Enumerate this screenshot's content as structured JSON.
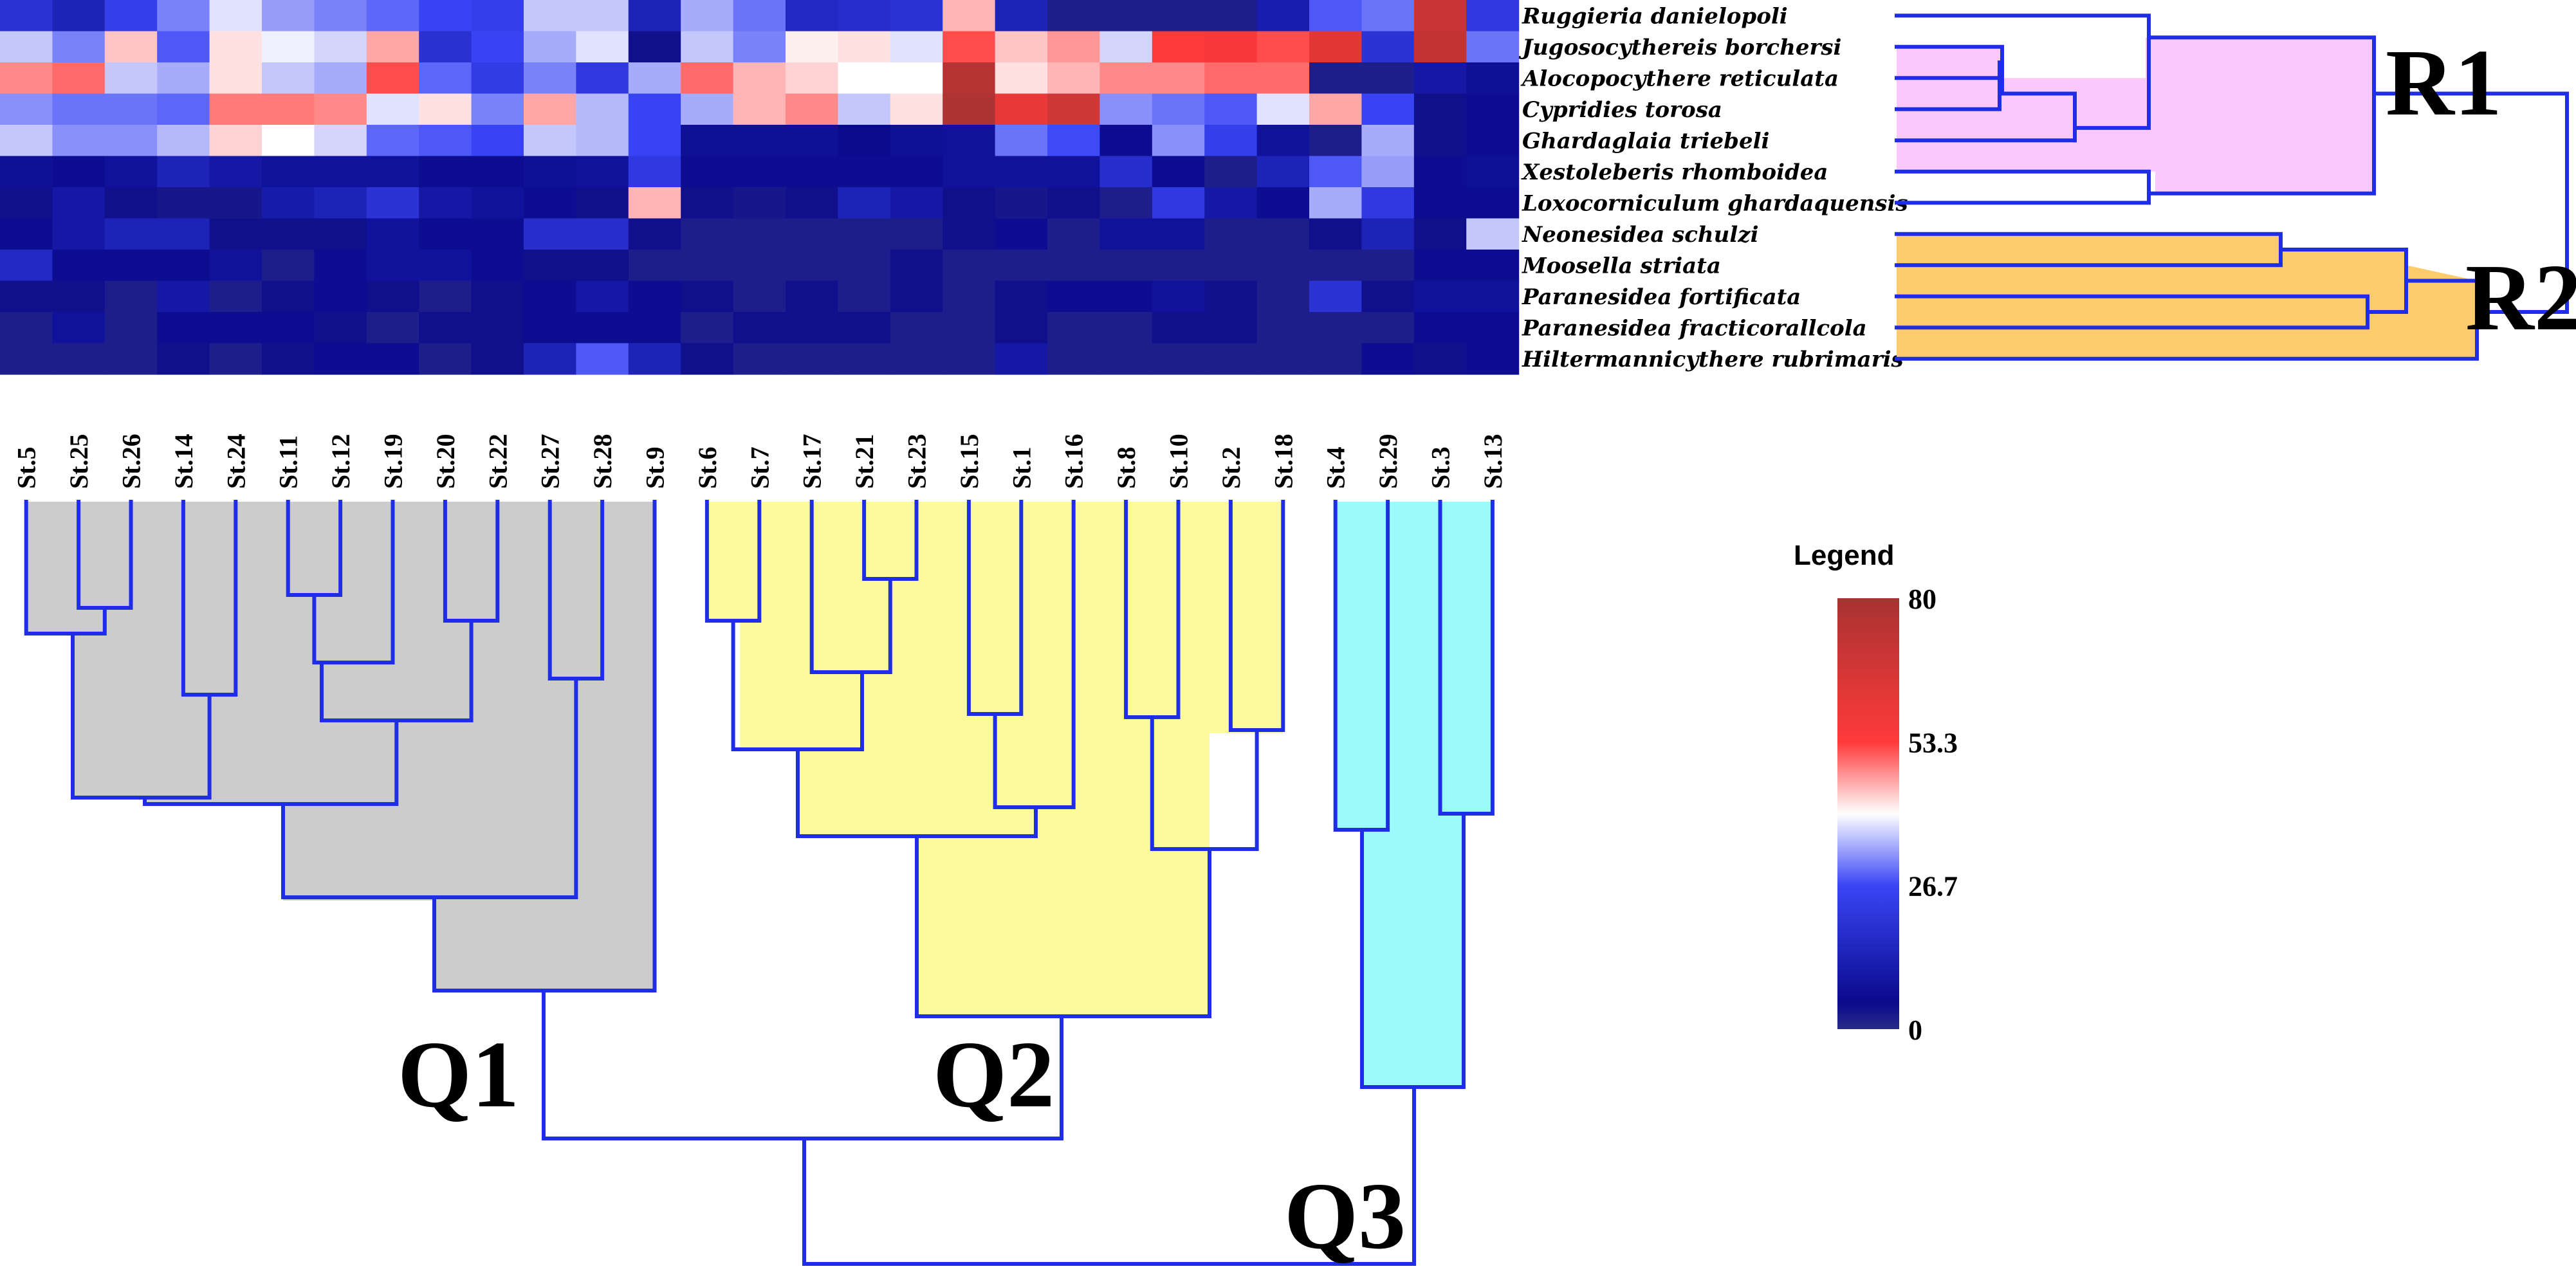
{
  "chart_data": {
    "type": "heatmap",
    "title": "",
    "rows": [
      "Ruggieria danielopoli",
      "Jugosocythereis  borchersi",
      "Alocopocythere reticulata",
      "Cypridies torosa",
      "Ghardaglaia triebeli",
      "Xestoleberis rhomboidea",
      "Loxocorniculum ghardaquensis",
      "Neonesidea schulzi",
      "Moosella striata",
      "Paranesidea fortificata",
      "Paranesidea  fracticorallcola",
      "Hiltermannicythere rubrimaris"
    ],
    "columns": [
      "St.5",
      "St.25",
      "St.26",
      "St.14",
      "St.24",
      "St.11",
      "St.12",
      "St.19",
      "St.20",
      "St.22",
      "St.27",
      "St.28",
      "St.9",
      "St.6",
      "St.7",
      "St.17",
      "St.21",
      "St.23",
      "St.15",
      "St.1",
      "St.16",
      "St.8",
      "St.10",
      "St.2",
      "St.18",
      "St.4",
      "St.29",
      "St.3",
      "St.13"
    ],
    "values": [
      [
        20,
        14,
        24,
        31,
        38,
        33,
        31,
        29,
        26,
        24,
        36,
        36,
        14,
        34,
        30,
        16,
        18,
        20,
        45,
        14,
        2,
        2,
        2,
        2,
        12,
        28,
        30,
        70,
        22
      ],
      [
        36,
        31,
        44,
        28,
        42,
        39,
        37,
        46,
        19,
        26,
        34,
        38,
        4,
        36,
        31,
        41,
        42,
        38,
        52,
        44,
        47,
        37,
        54,
        55,
        52,
        62,
        20,
        72,
        30
      ],
      [
        48,
        50,
        36,
        34,
        42,
        36,
        34,
        52,
        29,
        23,
        31,
        22,
        34,
        50,
        45,
        43,
        40,
        40,
        76,
        42,
        45,
        48,
        48,
        50,
        50,
        2,
        2,
        10,
        7
      ],
      [
        32,
        30,
        30,
        29,
        49,
        49,
        48,
        38,
        42,
        31,
        46,
        35,
        26,
        34,
        45,
        48,
        36,
        42,
        78,
        60,
        68,
        32,
        30,
        28,
        38,
        46,
        26,
        4,
        6
      ],
      [
        36,
        32,
        32,
        35,
        43,
        40,
        37,
        29,
        28,
        26,
        36,
        35,
        26,
        7,
        7,
        7,
        5,
        7,
        8,
        30,
        27,
        6,
        32,
        24,
        8,
        2,
        34,
        4,
        6
      ],
      [
        7,
        6,
        8,
        14,
        10,
        8,
        8,
        8,
        6,
        6,
        7,
        8,
        22,
        6,
        6,
        6,
        6,
        6,
        8,
        8,
        8,
        18,
        6,
        2,
        14,
        28,
        33,
        6,
        7
      ],
      [
        4,
        10,
        4,
        3,
        3,
        11,
        14,
        20,
        10,
        8,
        6,
        4,
        45,
        4,
        3,
        4,
        14,
        10,
        4,
        3,
        4,
        2,
        22,
        10,
        6,
        34,
        22,
        6,
        6
      ],
      [
        6,
        10,
        14,
        14,
        4,
        4,
        4,
        8,
        6,
        6,
        18,
        18,
        4,
        2,
        2,
        2,
        2,
        2,
        4,
        6,
        2,
        8,
        8,
        2,
        2,
        4,
        14,
        4,
        36
      ],
      [
        16,
        6,
        6,
        6,
        8,
        2,
        6,
        8,
        8,
        6,
        4,
        4,
        2,
        2,
        2,
        2,
        2,
        4,
        2,
        2,
        2,
        2,
        2,
        2,
        2,
        2,
        2,
        6,
        6
      ],
      [
        4,
        4,
        2,
        10,
        2,
        4,
        6,
        4,
        2,
        4,
        6,
        10,
        6,
        4,
        2,
        4,
        2,
        4,
        2,
        4,
        6,
        6,
        8,
        4,
        2,
        20,
        4,
        8,
        8
      ],
      [
        2,
        8,
        2,
        6,
        6,
        6,
        4,
        2,
        4,
        4,
        6,
        6,
        6,
        2,
        4,
        4,
        4,
        2,
        2,
        4,
        2,
        2,
        4,
        4,
        2,
        2,
        2,
        6,
        6
      ],
      [
        2,
        2,
        2,
        4,
        2,
        4,
        6,
        6,
        2,
        4,
        14,
        28,
        14,
        4,
        2,
        2,
        2,
        2,
        2,
        10,
        2,
        2,
        2,
        2,
        2,
        2,
        6,
        4,
        6
      ]
    ],
    "color_scale": {
      "min": 0,
      "max": 80,
      "stops": [
        {
          "value": 0,
          "color": "#2a2a8a"
        },
        {
          "value": 5,
          "color": "#0a0a8c"
        },
        {
          "value": 26.7,
          "color": "#3a46f6"
        },
        {
          "value": 40,
          "color": "#ffffff"
        },
        {
          "value": 53.3,
          "color": "#ff3a3a"
        },
        {
          "value": 80,
          "color": "#a83232"
        }
      ]
    },
    "legend": {
      "title": "Legend",
      "ticks": [
        "80",
        "53.3",
        "26.7",
        "0"
      ],
      "tick_values": [
        80,
        53.3,
        26.7,
        0
      ]
    },
    "row_clusters": [
      {
        "label": "R1",
        "members": [
          "Ruggieria danielopoli",
          "Jugosocythereis  borchersi",
          "Alocopocythere reticulata",
          "Cypridies torosa",
          "Ghardaglaia triebeli",
          "Xestoleberis rhomboidea",
          "Loxocorniculum ghardaquensis"
        ],
        "color": "#fbc8fb"
      },
      {
        "label": "R2",
        "members": [
          "Neonesidea schulzi",
          "Moosella striata",
          "Paranesidea fortificata",
          "Paranesidea  fracticorallcola",
          "Hiltermannicythere rubrimaris"
        ],
        "color": "#fccb6b"
      }
    ],
    "column_clusters": [
      {
        "label": "Q1",
        "members": [
          "St.5",
          "St.25",
          "St.26",
          "St.14",
          "St.24",
          "St.11",
          "St.12",
          "St.19",
          "St.20",
          "St.22",
          "St.27",
          "St.28",
          "St.9"
        ],
        "color": "#cccccc"
      },
      {
        "label": "Q2",
        "members": [
          "St.6",
          "St.7",
          "St.17",
          "St.21",
          "St.23",
          "St.15",
          "St.1",
          "St.16",
          "St.8",
          "St.10",
          "St.2",
          "St.18"
        ],
        "color": "#fbfb9b"
      },
      {
        "label": "Q3",
        "members": [
          "St.4",
          "St.29",
          "St.3",
          "St.13"
        ],
        "color": "#9bfbfb"
      }
    ],
    "dendrogram_color": "#1f2ee6"
  }
}
